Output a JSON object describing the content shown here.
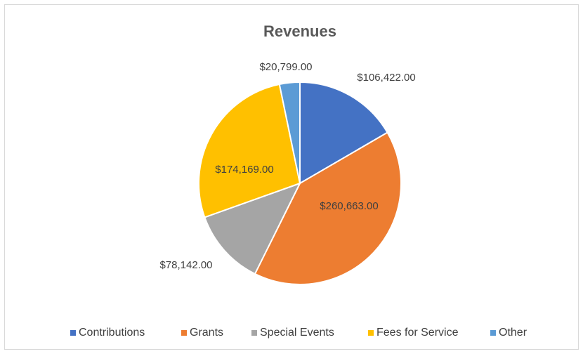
{
  "chart_data": {
    "type": "pie",
    "title": "Revenues",
    "categories": [
      "Contributions",
      "Grants",
      "Special Events",
      "Fees for Service",
      "Other"
    ],
    "values": [
      106422,
      260663,
      78142,
      174169,
      20799
    ],
    "value_labels": [
      "$106,422.00",
      "$260,663.00",
      "$78,142.00",
      "$174,169.00",
      "$20,799.00"
    ],
    "colors": [
      "#4472c4",
      "#ed7d31",
      "#a5a5a5",
      "#ffc000",
      "#5b9bd5"
    ],
    "legend": "bottom"
  }
}
